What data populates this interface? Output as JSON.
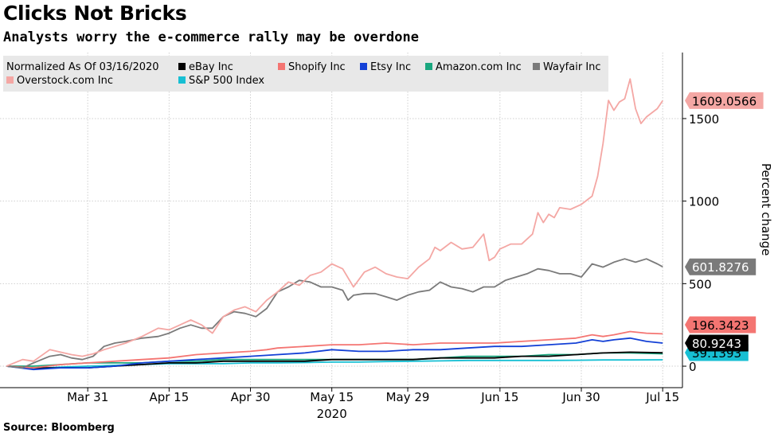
{
  "header": {
    "title": "Clicks Not Bricks",
    "subtitle": "Analysts worry the e-commerce rally may be overdone"
  },
  "footer": {
    "source": "Source: Bloomberg"
  },
  "chart_data": {
    "type": "line",
    "title": "Clicks Not Bricks",
    "subtitle": "Analysts worry the e-commerce rally may be overdone",
    "ylabel": "Percent change",
    "xlabel": "2020",
    "ylim": [
      -130,
      1900
    ],
    "yticks": [
      0,
      500,
      1000,
      1500
    ],
    "ytick_labels": [
      "0",
      "500",
      "1000",
      "1500"
    ],
    "x_range_days": [
      0,
      122
    ],
    "x_ticks": [
      {
        "day": 15,
        "label": "Mar 31"
      },
      {
        "day": 30,
        "label": "Apr 15"
      },
      {
        "day": 45,
        "label": "Apr 30"
      },
      {
        "day": 60,
        "label": "May 15"
      },
      {
        "day": 74,
        "label": "May 29"
      },
      {
        "day": 91,
        "label": "Jun 15"
      },
      {
        "day": 106,
        "label": "Jun 30"
      },
      {
        "day": 121,
        "label": "Jul 15"
      }
    ],
    "x_year_label": "2020",
    "grid": true,
    "legend": {
      "title": "Normalized As Of 03/16/2020",
      "position": "top-left"
    },
    "series": [
      {
        "name": "Overstock.com Inc",
        "color": "#f4a7a4",
        "end_label": "1609.0566",
        "label_text_color": "#000000",
        "points": [
          [
            0,
            0
          ],
          [
            3,
            40
          ],
          [
            5,
            30
          ],
          [
            8,
            100
          ],
          [
            10,
            85
          ],
          [
            12,
            70
          ],
          [
            14,
            60
          ],
          [
            16,
            75
          ],
          [
            18,
            100
          ],
          [
            20,
            120
          ],
          [
            22,
            140
          ],
          [
            25,
            180
          ],
          [
            28,
            230
          ],
          [
            30,
            220
          ],
          [
            32,
            250
          ],
          [
            34,
            280
          ],
          [
            36,
            250
          ],
          [
            38,
            200
          ],
          [
            40,
            300
          ],
          [
            42,
            340
          ],
          [
            44,
            360
          ],
          [
            46,
            330
          ],
          [
            48,
            400
          ],
          [
            50,
            450
          ],
          [
            52,
            510
          ],
          [
            54,
            490
          ],
          [
            56,
            550
          ],
          [
            58,
            570
          ],
          [
            60,
            620
          ],
          [
            62,
            590
          ],
          [
            64,
            480
          ],
          [
            66,
            570
          ],
          [
            68,
            600
          ],
          [
            70,
            560
          ],
          [
            72,
            540
          ],
          [
            74,
            530
          ],
          [
            76,
            600
          ],
          [
            78,
            650
          ],
          [
            79,
            720
          ],
          [
            80,
            700
          ],
          [
            82,
            750
          ],
          [
            84,
            710
          ],
          [
            86,
            720
          ],
          [
            88,
            800
          ],
          [
            89,
            640
          ],
          [
            90,
            660
          ],
          [
            91,
            710
          ],
          [
            93,
            740
          ],
          [
            95,
            740
          ],
          [
            97,
            800
          ],
          [
            98,
            930
          ],
          [
            99,
            870
          ],
          [
            100,
            920
          ],
          [
            101,
            900
          ],
          [
            102,
            960
          ],
          [
            104,
            950
          ],
          [
            106,
            980
          ],
          [
            108,
            1030
          ],
          [
            109,
            1150
          ],
          [
            110,
            1350
          ],
          [
            111,
            1610
          ],
          [
            112,
            1550
          ],
          [
            113,
            1600
          ],
          [
            114,
            1620
          ],
          [
            115,
            1740
          ],
          [
            116,
            1560
          ],
          [
            117,
            1470
          ],
          [
            118,
            1510
          ],
          [
            120,
            1560
          ],
          [
            121,
            1609
          ]
        ]
      },
      {
        "name": "Wayfair Inc",
        "color": "#7a7a7a",
        "end_label": "601.8276",
        "label_text_color": "#ffffff",
        "points": [
          [
            0,
            0
          ],
          [
            3,
            -10
          ],
          [
            5,
            20
          ],
          [
            8,
            60
          ],
          [
            10,
            70
          ],
          [
            12,
            50
          ],
          [
            14,
            40
          ],
          [
            16,
            60
          ],
          [
            18,
            120
          ],
          [
            20,
            140
          ],
          [
            22,
            150
          ],
          [
            25,
            170
          ],
          [
            28,
            180
          ],
          [
            30,
            200
          ],
          [
            32,
            230
          ],
          [
            34,
            250
          ],
          [
            36,
            230
          ],
          [
            38,
            230
          ],
          [
            40,
            300
          ],
          [
            42,
            330
          ],
          [
            44,
            320
          ],
          [
            46,
            300
          ],
          [
            48,
            350
          ],
          [
            50,
            450
          ],
          [
            52,
            480
          ],
          [
            54,
            520
          ],
          [
            56,
            510
          ],
          [
            58,
            480
          ],
          [
            60,
            480
          ],
          [
            62,
            460
          ],
          [
            63,
            400
          ],
          [
            64,
            430
          ],
          [
            66,
            440
          ],
          [
            68,
            440
          ],
          [
            70,
            420
          ],
          [
            72,
            400
          ],
          [
            74,
            430
          ],
          [
            76,
            450
          ],
          [
            78,
            460
          ],
          [
            80,
            510
          ],
          [
            82,
            480
          ],
          [
            84,
            470
          ],
          [
            86,
            450
          ],
          [
            88,
            480
          ],
          [
            90,
            480
          ],
          [
            92,
            520
          ],
          [
            94,
            540
          ],
          [
            96,
            560
          ],
          [
            98,
            590
          ],
          [
            100,
            580
          ],
          [
            102,
            560
          ],
          [
            104,
            560
          ],
          [
            106,
            540
          ],
          [
            108,
            620
          ],
          [
            110,
            600
          ],
          [
            112,
            630
          ],
          [
            114,
            650
          ],
          [
            116,
            630
          ],
          [
            118,
            650
          ],
          [
            120,
            620
          ],
          [
            121,
            602
          ]
        ]
      },
      {
        "name": "Shopify Inc",
        "color": "#f47572",
        "end_label": "196.3423",
        "label_text_color": "#000000",
        "points": [
          [
            0,
            0
          ],
          [
            5,
            -10
          ],
          [
            10,
            10
          ],
          [
            15,
            20
          ],
          [
            20,
            30
          ],
          [
            25,
            40
          ],
          [
            30,
            50
          ],
          [
            35,
            70
          ],
          [
            40,
            80
          ],
          [
            45,
            90
          ],
          [
            48,
            100
          ],
          [
            50,
            110
          ],
          [
            55,
            120
          ],
          [
            60,
            130
          ],
          [
            65,
            130
          ],
          [
            70,
            140
          ],
          [
            75,
            130
          ],
          [
            80,
            140
          ],
          [
            85,
            140
          ],
          [
            90,
            140
          ],
          [
            95,
            150
          ],
          [
            100,
            160
          ],
          [
            105,
            170
          ],
          [
            108,
            190
          ],
          [
            110,
            180
          ],
          [
            112,
            190
          ],
          [
            115,
            210
          ],
          [
            118,
            200
          ],
          [
            121,
            196
          ]
        ]
      },
      {
        "name": "Etsy Inc",
        "color": "#1340d6",
        "end_label": "",
        "label_text_color": "#ffffff",
        "points": [
          [
            0,
            0
          ],
          [
            5,
            -20
          ],
          [
            10,
            -10
          ],
          [
            15,
            -10
          ],
          [
            20,
            0
          ],
          [
            25,
            20
          ],
          [
            30,
            30
          ],
          [
            35,
            40
          ],
          [
            40,
            50
          ],
          [
            45,
            60
          ],
          [
            50,
            70
          ],
          [
            55,
            80
          ],
          [
            60,
            100
          ],
          [
            65,
            90
          ],
          [
            70,
            90
          ],
          [
            75,
            100
          ],
          [
            80,
            100
          ],
          [
            85,
            110
          ],
          [
            90,
            120
          ],
          [
            95,
            120
          ],
          [
            100,
            130
          ],
          [
            105,
            140
          ],
          [
            108,
            160
          ],
          [
            110,
            150
          ],
          [
            112,
            160
          ],
          [
            115,
            170
          ],
          [
            118,
            150
          ],
          [
            121,
            140
          ]
        ]
      },
      {
        "name": "eBay Inc",
        "color": "#000000",
        "end_label": "80.9243",
        "label_text_color": "#ffffff",
        "points": [
          [
            0,
            0
          ],
          [
            5,
            -10
          ],
          [
            10,
            -10
          ],
          [
            15,
            -10
          ],
          [
            20,
            0
          ],
          [
            25,
            10
          ],
          [
            30,
            20
          ],
          [
            35,
            20
          ],
          [
            40,
            30
          ],
          [
            45,
            30
          ],
          [
            50,
            30
          ],
          [
            55,
            30
          ],
          [
            60,
            40
          ],
          [
            65,
            40
          ],
          [
            70,
            40
          ],
          [
            75,
            40
          ],
          [
            80,
            50
          ],
          [
            85,
            50
          ],
          [
            90,
            50
          ],
          [
            95,
            60
          ],
          [
            100,
            60
          ],
          [
            105,
            70
          ],
          [
            110,
            80
          ],
          [
            115,
            85
          ],
          [
            121,
            81
          ]
        ]
      },
      {
        "name": "Amazon.com Inc",
        "color": "#1aa77f",
        "end_label": "",
        "label_text_color": "#000000",
        "points": [
          [
            0,
            0
          ],
          [
            5,
            0
          ],
          [
            10,
            10
          ],
          [
            15,
            20
          ],
          [
            20,
            20
          ],
          [
            25,
            20
          ],
          [
            30,
            30
          ],
          [
            35,
            30
          ],
          [
            40,
            40
          ],
          [
            45,
            40
          ],
          [
            50,
            40
          ],
          [
            55,
            40
          ],
          [
            60,
            40
          ],
          [
            65,
            40
          ],
          [
            70,
            40
          ],
          [
            75,
            40
          ],
          [
            80,
            50
          ],
          [
            85,
            60
          ],
          [
            90,
            60
          ],
          [
            95,
            60
          ],
          [
            100,
            70
          ],
          [
            105,
            70
          ],
          [
            110,
            80
          ],
          [
            115,
            80
          ],
          [
            121,
            75
          ]
        ]
      },
      {
        "name": "S&P 500 Index",
        "color": "#17bfd3",
        "end_label": "39.1393",
        "label_text_color": "#000000",
        "points": [
          [
            0,
            0
          ],
          [
            5,
            -15
          ],
          [
            10,
            -5
          ],
          [
            15,
            0
          ],
          [
            20,
            5
          ],
          [
            25,
            10
          ],
          [
            30,
            15
          ],
          [
            35,
            15
          ],
          [
            40,
            15
          ],
          [
            45,
            20
          ],
          [
            50,
            20
          ],
          [
            55,
            22
          ],
          [
            60,
            25
          ],
          [
            65,
            25
          ],
          [
            70,
            28
          ],
          [
            75,
            30
          ],
          [
            80,
            32
          ],
          [
            85,
            35
          ],
          [
            90,
            35
          ],
          [
            95,
            35
          ],
          [
            100,
            35
          ],
          [
            105,
            36
          ],
          [
            110,
            38
          ],
          [
            115,
            38
          ],
          [
            121,
            39
          ]
        ]
      }
    ]
  }
}
